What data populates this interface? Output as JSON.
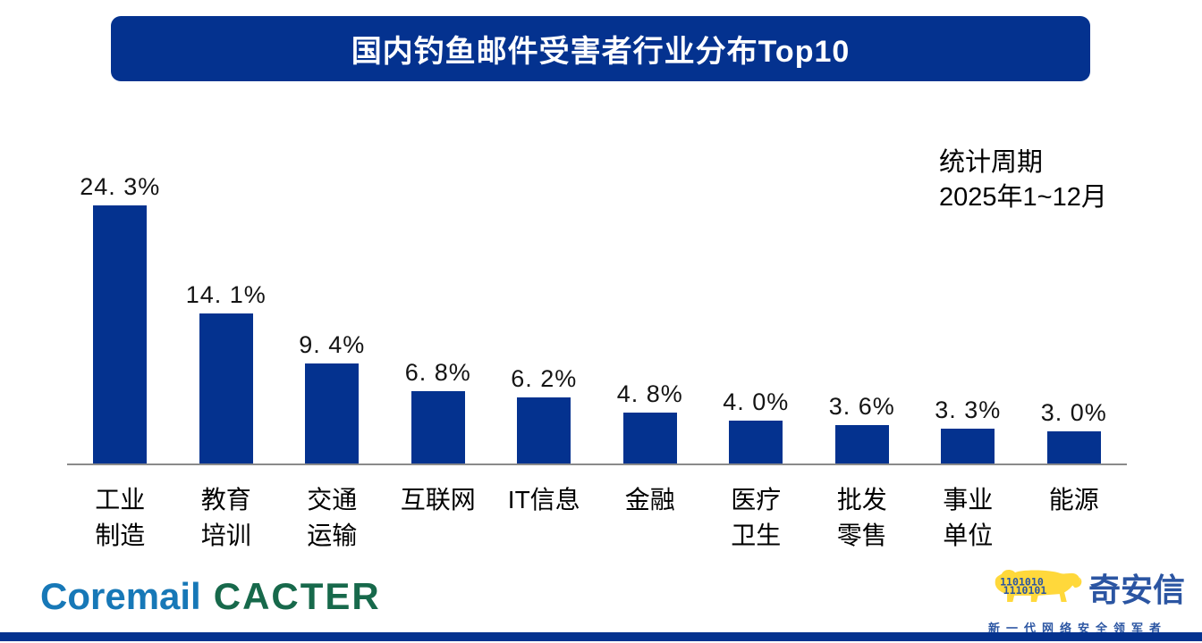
{
  "title": "国内钓鱼邮件受害者行业分布Top10",
  "period": {
    "line1": "统计周期",
    "line2": "2025年1~12月"
  },
  "chart_data": {
    "type": "bar",
    "title": "国内钓鱼邮件受害者行业分布Top10",
    "categories": [
      "工业\n制造",
      "教育\n培训",
      "交通\n运输",
      "互联网",
      "IT信息",
      "金融",
      "医疗\n卫生",
      "批发\n零售",
      "事业\n单位",
      "能源"
    ],
    "values": [
      24.3,
      14.1,
      9.4,
      6.8,
      6.2,
      4.8,
      4.0,
      3.6,
      3.3,
      3.0
    ],
    "value_labels": [
      "24. 3%",
      "14. 1%",
      "9. 4%",
      "6. 8%",
      "6. 2%",
      "4. 8%",
      "4. 0%",
      "3. 6%",
      "3. 3%",
      "3. 0%"
    ],
    "xlabel": "",
    "ylabel": "",
    "ylim": [
      0,
      27.8
    ],
    "grid": false,
    "legend": false,
    "bar_color": "#04328F",
    "axis_color": "#8A8A8A",
    "annotation": "统计周期 2025年1~12月"
  },
  "footer": {
    "coremail_text": "Coremail",
    "cacter_text": "CACTER",
    "coremail_color": "#1778B7",
    "cacter_color": "#17694B",
    "qianxin_name": "奇安信",
    "qianxin_tagline": "新一代网络安全领军者",
    "qianxin_color": "#2B55A2",
    "tiger_color": "#FFD83B",
    "tiger_digits_row1": "1101010",
    "tiger_digits_row2": "1110101"
  },
  "colors": {
    "banner": "#04328F",
    "bottom_bar": "#04328F"
  }
}
